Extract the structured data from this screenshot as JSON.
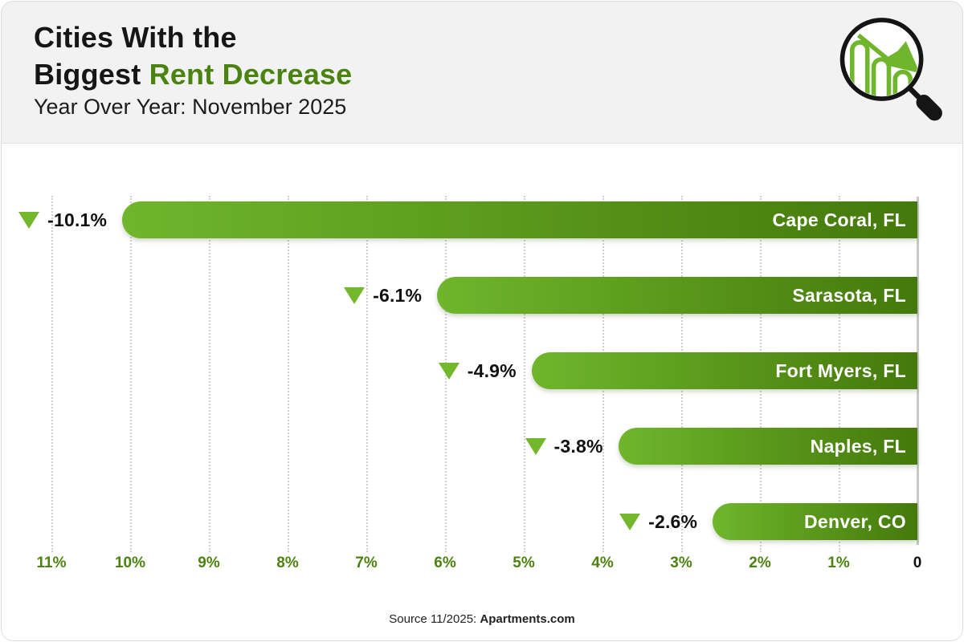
{
  "header": {
    "title_line1": "Cities With the",
    "title_line2_prefix": "Biggest ",
    "title_line2_highlight": "Rent Decrease",
    "subtitle": "Year Over Year: November 2025"
  },
  "logo": {
    "name": "magnifying-glass-over-declining-bar-chart"
  },
  "chart_data": {
    "type": "bar",
    "orientation": "horizontal",
    "title": "Cities With the Biggest Rent Decrease",
    "subtitle": "Year Over Year: November 2025",
    "categories": [
      "Cape Coral, FL",
      "Sarasota, FL",
      "Fort Myers, FL",
      "Naples, FL",
      "Denver, CO"
    ],
    "values": [
      -10.1,
      -6.1,
      -4.9,
      -3.8,
      -2.6
    ],
    "value_labels": [
      "-10.1%",
      "-6.1%",
      "-4.9%",
      "-3.8%",
      "-2.6%"
    ],
    "axis_ticks": [
      "11%",
      "10%",
      "9%",
      "8%",
      "7%",
      "6%",
      "5%",
      "4%",
      "3%",
      "2%",
      "1%",
      "0"
    ],
    "axis_tick_values": [
      11,
      10,
      9,
      8,
      7,
      6,
      5,
      4,
      3,
      2,
      1,
      0
    ],
    "xlim": [
      11,
      0
    ],
    "grid": "vertical-dotted",
    "legend": "none",
    "colors": {
      "bar_gradient_start": "#6fb62c",
      "bar_gradient_end": "#44790b",
      "triangle": "#72b72c",
      "tick_label": "#4a830f",
      "zero_label": "#111111",
      "title_highlight": "#4a830f",
      "header_background": "#f2f2f2",
      "gridline": "#cfcfcf",
      "axis_line": "#c9c9c9",
      "bar_text": "#ffffff"
    }
  },
  "footer": {
    "source_prefix": "Source 11/2025: ",
    "source_bold": "Apartments.com"
  }
}
